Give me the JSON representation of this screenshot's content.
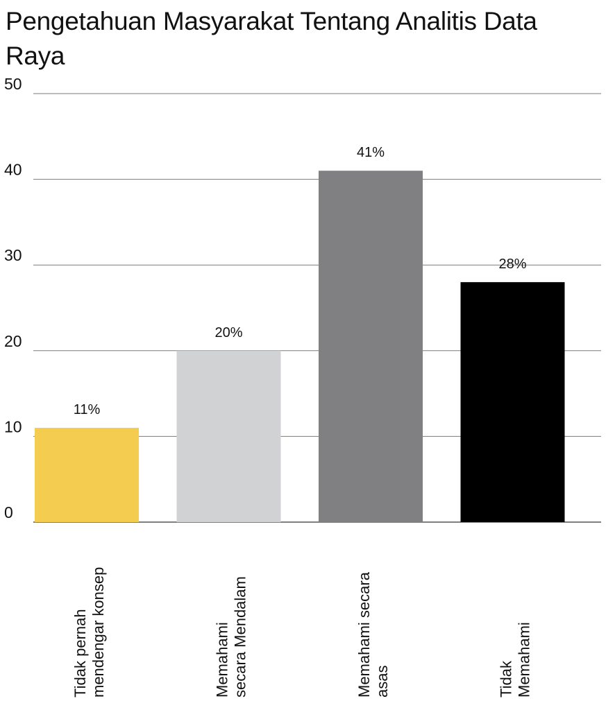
{
  "chart_data": {
    "type": "bar",
    "title": "Pengetahuan Masyarakat  Tentang Analitis Data Raya",
    "categories": [
      [
        "Tidak pernah",
        "mendengar konsep"
      ],
      [
        "Memahami",
        "secara Mendalam"
      ],
      [
        "Memahami secara",
        "asas"
      ],
      [
        "Tidak",
        "Memahami"
      ]
    ],
    "values": [
      11,
      20,
      41,
      28
    ],
    "data_labels": [
      "11%",
      "20%",
      "41%",
      "28%"
    ],
    "colors": [
      "#f4cc50",
      "#d1d2d4",
      "#808082",
      "#000000"
    ],
    "ylim": [
      0,
      50
    ],
    "yticks": [
      0,
      10,
      20,
      30,
      40,
      50
    ],
    "grid": true,
    "legend": "none",
    "xlabel": "",
    "ylabel": ""
  }
}
